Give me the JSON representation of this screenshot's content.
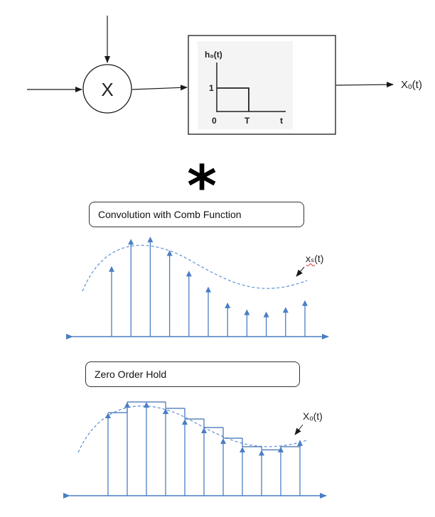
{
  "block_diagram": {
    "multiplier_symbol": "X",
    "output_label": "Xₒ(t)",
    "inset": {
      "func_label": "h₀(t)",
      "y_tick": "1",
      "x_tick_0": "0",
      "x_tick_T": "T",
      "x_axis": "t"
    }
  },
  "operator": {
    "symbol": "*"
  },
  "panel_sampled": {
    "caption": "Convolution with Comb Function",
    "curve_label": "xₛ(t)",
    "samples": [
      0.62,
      0.86,
      0.88,
      0.76,
      0.58,
      0.44,
      0.3,
      0.24,
      0.22,
      0.26,
      0.32
    ]
  },
  "panel_hold": {
    "caption": "Zero Order Hold",
    "curve_label": "Xₒ(t)",
    "samples": [
      0.78,
      0.88,
      0.88,
      0.82,
      0.72,
      0.64,
      0.54,
      0.46,
      0.43,
      0.46,
      0.52
    ]
  },
  "colors": {
    "stroke": "#1a1a1a",
    "signal": "#4a7ec4",
    "dashed_curve": "#5b8fd2"
  }
}
